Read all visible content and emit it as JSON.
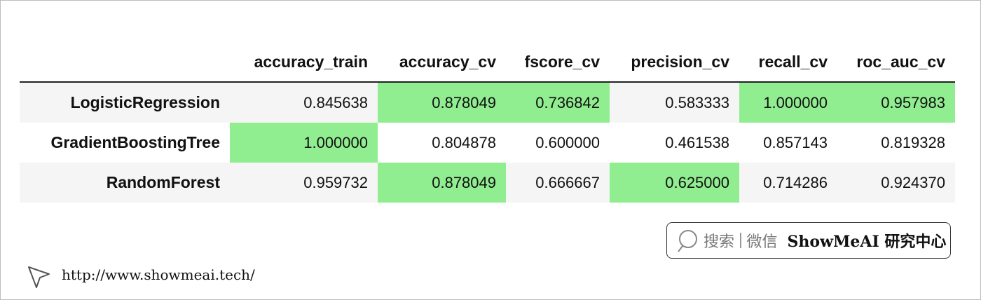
{
  "table": {
    "columns": [
      "accuracy_train",
      "accuracy_cv",
      "fscore_cv",
      "precision_cv",
      "recall_cv",
      "roc_auc_cv"
    ],
    "rows": [
      {
        "index": "LogisticRegression",
        "cells": [
          "0.845638",
          "0.878049",
          "0.736842",
          "0.583333",
          "1.000000",
          "0.957983"
        ]
      },
      {
        "index": "GradientBoostingTree",
        "cells": [
          "1.000000",
          "0.804878",
          "0.600000",
          "0.461538",
          "0.857143",
          "0.819328"
        ]
      },
      {
        "index": "RandomForest",
        "cells": [
          "0.959732",
          "0.878049",
          "0.666667",
          "0.625000",
          "0.714286",
          "0.924370"
        ]
      }
    ],
    "highlight": "column-max",
    "highlight_color": "#90ee90",
    "stripe_color": "#f5f5f5"
  },
  "badge": {
    "search": "搜索",
    "wechat": "微信",
    "brand": "ShowMeAI 研究中心"
  },
  "footer": {
    "url": "http://www.showmeai.tech/"
  }
}
